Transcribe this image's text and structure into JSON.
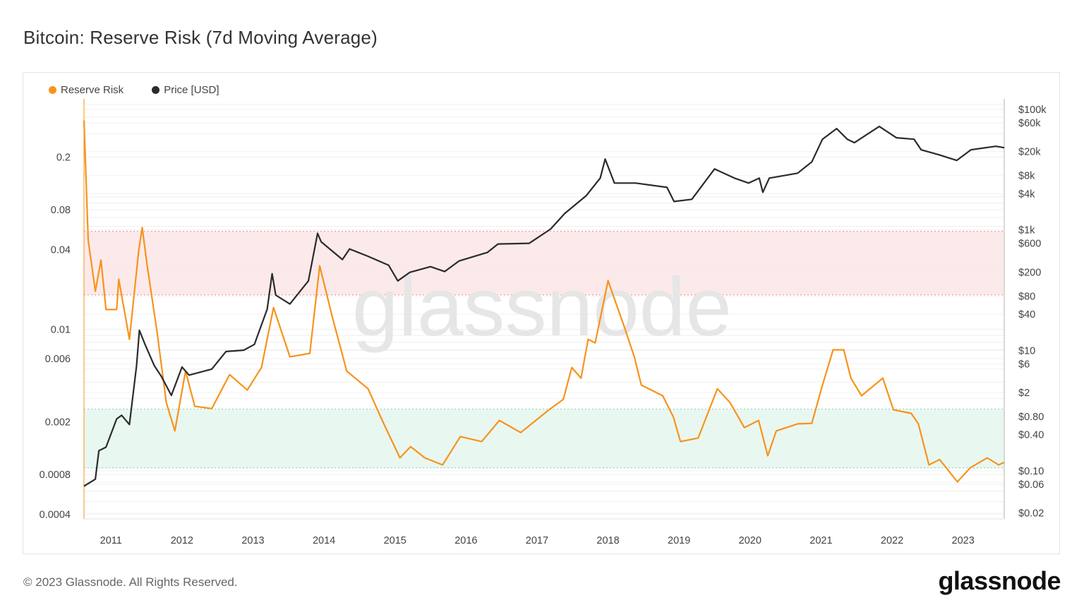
{
  "header": {
    "title": "Bitcoin: Reserve Risk (7d Moving Average)"
  },
  "footer": {
    "copyright": "© 2023 Glassnode. All Rights Reserved.",
    "logo_text": "glassnode"
  },
  "watermark": "glassnode",
  "colors": {
    "reserve_risk": "#f7931a",
    "price": "#2b2b2b",
    "high_band": "#fce6e7",
    "low_band": "#e5f6ee"
  },
  "chart_data": {
    "type": "line",
    "title": "Bitcoin: Reserve Risk (7d Moving Average)",
    "legend_position": "top-left",
    "grid": true,
    "x_ticks": [
      "2011",
      "2012",
      "2013",
      "2014",
      "2015",
      "2016",
      "2017",
      "2018",
      "2019",
      "2020",
      "2021",
      "2022",
      "2023"
    ],
    "xlim": [
      2010.62,
      2023.58
    ],
    "y_left": {
      "scale": "log",
      "lim": [
        0.00037,
        0.55
      ],
      "ticks": [
        0.2,
        0.08,
        0.04,
        0.01,
        0.006,
        0.002,
        0.0008,
        0.0004
      ],
      "tick_labels": [
        "0.2",
        "0.08",
        "0.04",
        "0.01",
        "0.006",
        "0.002",
        "0.0008",
        "0.0004"
      ]
    },
    "y_right": {
      "scale": "log",
      "lim": [
        0.016,
        150000
      ],
      "ticks": [
        100000,
        60000,
        20000,
        8000,
        4000,
        1000,
        600,
        200,
        80,
        40,
        10,
        6,
        2,
        0.8,
        0.4,
        0.1,
        0.06,
        0.02
      ],
      "tick_labels": [
        "$100k",
        "$60k",
        "$20k",
        "$8k",
        "$4k",
        "$1k",
        "$600",
        "$200",
        "$80",
        "$40",
        "$10",
        "$6",
        "$2",
        "$0.80",
        "$0.40",
        "$0.10",
        "$0.06",
        "$0.02"
      ]
    },
    "bands": [
      {
        "axis": "left",
        "range": [
          0.0182,
          0.055
        ],
        "color": "#fce6e7",
        "line": "#f28b8b"
      },
      {
        "axis": "left",
        "range": [
          0.0009,
          0.0025
        ],
        "color": "#e5f6ee",
        "line": "#7fd9b0"
      }
    ],
    "series": [
      {
        "name": "Reserve Risk",
        "axis": "left",
        "color": "#f7931a",
        "x": [
          2010.62,
          2010.68,
          2010.78,
          2010.86,
          2010.93,
          2011.08,
          2011.11,
          2011.26,
          2011.39,
          2011.44,
          2011.51,
          2011.65,
          2011.78,
          2011.9,
          2012.05,
          2012.18,
          2012.42,
          2012.67,
          2012.92,
          2013.12,
          2013.29,
          2013.52,
          2013.8,
          2013.94,
          2014.12,
          2014.32,
          2014.62,
          2014.82,
          2015.07,
          2015.22,
          2015.42,
          2015.67,
          2015.92,
          2016.22,
          2016.47,
          2016.77,
          2017.17,
          2017.37,
          2017.49,
          2017.62,
          2017.72,
          2017.82,
          2018.0,
          2018.08,
          2018.22,
          2018.37,
          2018.47,
          2018.77,
          2018.92,
          2019.02,
          2019.27,
          2019.54,
          2019.72,
          2019.92,
          2020.12,
          2020.25,
          2020.37,
          2020.67,
          2020.87,
          2021.02,
          2021.17,
          2021.32,
          2021.42,
          2021.57,
          2021.87,
          2022.02,
          2022.27,
          2022.37,
          2022.52,
          2022.67,
          2022.92,
          2023.1,
          2023.34,
          2023.5,
          2023.58
        ],
        "y": [
          0.378,
          0.047,
          0.0194,
          0.0333,
          0.0141,
          0.0141,
          0.0239,
          0.0084,
          0.0391,
          0.0586,
          0.0305,
          0.0095,
          0.00279,
          0.00171,
          0.00484,
          0.00262,
          0.00252,
          0.00455,
          0.00348,
          0.00515,
          0.0146,
          0.0062,
          0.00658,
          0.0302,
          0.0122,
          0.00484,
          0.00356,
          0.00205,
          0.00107,
          0.0013,
          0.00107,
          0.000946,
          0.00155,
          0.00142,
          0.00205,
          0.00166,
          0.00247,
          0.00296,
          0.00515,
          0.00428,
          0.0084,
          0.0079,
          0.0233,
          0.0176,
          0.0108,
          0.0062,
          0.00379,
          0.00315,
          0.00218,
          0.00142,
          0.00151,
          0.00356,
          0.00279,
          0.00181,
          0.00205,
          0.00111,
          0.00171,
          0.00193,
          0.00195,
          0.00379,
          0.007,
          0.007,
          0.00428,
          0.00315,
          0.00428,
          0.00247,
          0.00232,
          0.00193,
          0.000946,
          0.00104,
          0.000705,
          0.0009,
          0.00107,
          0.000946,
          0.00099
        ]
      },
      {
        "name": "Price [USD]",
        "axis": "right",
        "color": "#2b2b2b",
        "x": [
          2010.62,
          2010.78,
          2010.83,
          2010.93,
          2011.08,
          2011.15,
          2011.26,
          2011.36,
          2011.4,
          2011.48,
          2011.61,
          2011.71,
          2011.85,
          2012.0,
          2012.1,
          2012.42,
          2012.62,
          2012.87,
          2013.02,
          2013.2,
          2013.27,
          2013.32,
          2013.52,
          2013.78,
          2013.91,
          2013.96,
          2014.26,
          2014.36,
          2014.61,
          2014.91,
          2015.04,
          2015.21,
          2015.5,
          2015.7,
          2015.9,
          2016.3,
          2016.45,
          2016.89,
          2017.19,
          2017.39,
          2017.69,
          2017.89,
          2017.96,
          2018.09,
          2018.39,
          2018.83,
          2018.93,
          2019.18,
          2019.5,
          2019.78,
          2019.98,
          2020.13,
          2020.18,
          2020.27,
          2020.67,
          2020.87,
          2021.02,
          2021.22,
          2021.37,
          2021.47,
          2021.82,
          2022.06,
          2022.31,
          2022.41,
          2022.66,
          2022.91,
          2023.11,
          2023.46,
          2023.58
        ],
        "y": [
          0.056,
          0.073,
          0.217,
          0.248,
          0.73,
          0.84,
          0.59,
          5.6,
          21.6,
          12.6,
          5.6,
          3.7,
          1.8,
          5.3,
          3.9,
          4.9,
          9.6,
          10.1,
          12.6,
          48.5,
          188,
          83,
          59,
          143,
          879,
          635,
          323,
          484,
          370,
          260,
          143,
          198,
          246,
          204,
          305,
          423,
          585,
          601,
          1033,
          1875,
          3681,
          7244,
          15030,
          6000,
          6000,
          5096,
          2965,
          3222,
          10300,
          7244,
          6000,
          7244,
          4217,
          7244,
          8750,
          13490,
          32070,
          48190,
          32070,
          28050,
          52240,
          33880,
          32070,
          21380,
          17700,
          14260,
          21380,
          24490,
          23170
        ]
      }
    ]
  }
}
